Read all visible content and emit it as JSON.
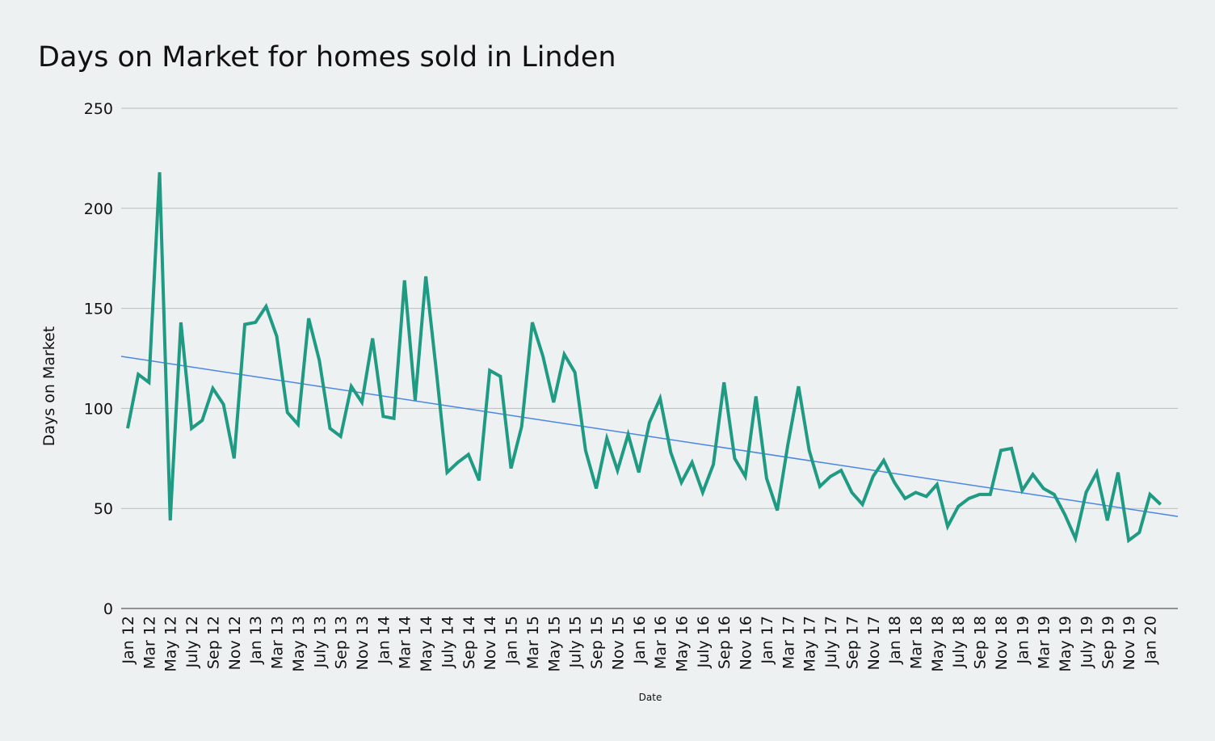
{
  "chart_data": {
    "type": "line",
    "title": "Days on Market for homes sold in Linden",
    "x_label": "Date",
    "y_label": "Days on Market",
    "categories": [
      "Jan 12",
      null,
      "Mar 12",
      null,
      "May 12",
      null,
      "July 12",
      null,
      "Sep 12",
      null,
      "Nov 12",
      null,
      "Jan 13",
      null,
      "Mar 13",
      null,
      "May 13",
      null,
      "July 13",
      null,
      "Sep 13",
      null,
      "Nov 13",
      null,
      "Jan 14",
      null,
      "Mar 14",
      null,
      "May 14",
      null,
      "July 14",
      null,
      "Sep 14",
      null,
      "Nov 14",
      null,
      "Jan 15",
      null,
      "Mar 15",
      null,
      "May 15",
      null,
      "July 15",
      null,
      "Sep 15",
      null,
      "Nov 15",
      null,
      "Jan 16",
      null,
      "Mar 16",
      null,
      "May 16",
      null,
      "July 16",
      null,
      "Sep 16",
      null,
      "Nov 16",
      null,
      "Jan 17",
      null,
      "Mar 17",
      null,
      "May 17",
      null,
      "July 17",
      null,
      "Sep 17",
      null,
      "Nov 17",
      null,
      "Jan 18",
      null,
      "Mar 18",
      null,
      "May 18",
      null,
      "July 18",
      null,
      "Sep 18",
      null,
      "Nov 18",
      null,
      "Jan 19",
      null,
      "Mar 19",
      null,
      "May 19",
      null,
      "July 19",
      null,
      "Sep 19",
      null,
      "Nov 19",
      null,
      "Jan 20",
      null
    ],
    "series": [
      {
        "color": "#1f9a83",
        "values": [
          90,
          117,
          113,
          218,
          44,
          143,
          90,
          94,
          110,
          102,
          75,
          142,
          143,
          151,
          136,
          98,
          92,
          145,
          124,
          90,
          86,
          111,
          103,
          135,
          96,
          95,
          164,
          104,
          166,
          118,
          68,
          73,
          77,
          64,
          119,
          116,
          70,
          91,
          143,
          126,
          103,
          127,
          118,
          79,
          60,
          85,
          69,
          87,
          68,
          93,
          105,
          78,
          63,
          73,
          58,
          72,
          113,
          75,
          66,
          106,
          65,
          49,
          82,
          111,
          79,
          61,
          66,
          69,
          58,
          52,
          66,
          74,
          63,
          55,
          58,
          56,
          62,
          41,
          51,
          55,
          57,
          57,
          79,
          80,
          59,
          67,
          60,
          57,
          47,
          35,
          58,
          68,
          44,
          68,
          34,
          38,
          57,
          52
        ]
      }
    ],
    "trendline": {
      "color": "#4a86e8",
      "start": 126,
      "end": 46
    },
    "ylim": [
      0,
      250
    ],
    "yticks": [
      0,
      50,
      100,
      150,
      200,
      250
    ],
    "grid": true
  }
}
